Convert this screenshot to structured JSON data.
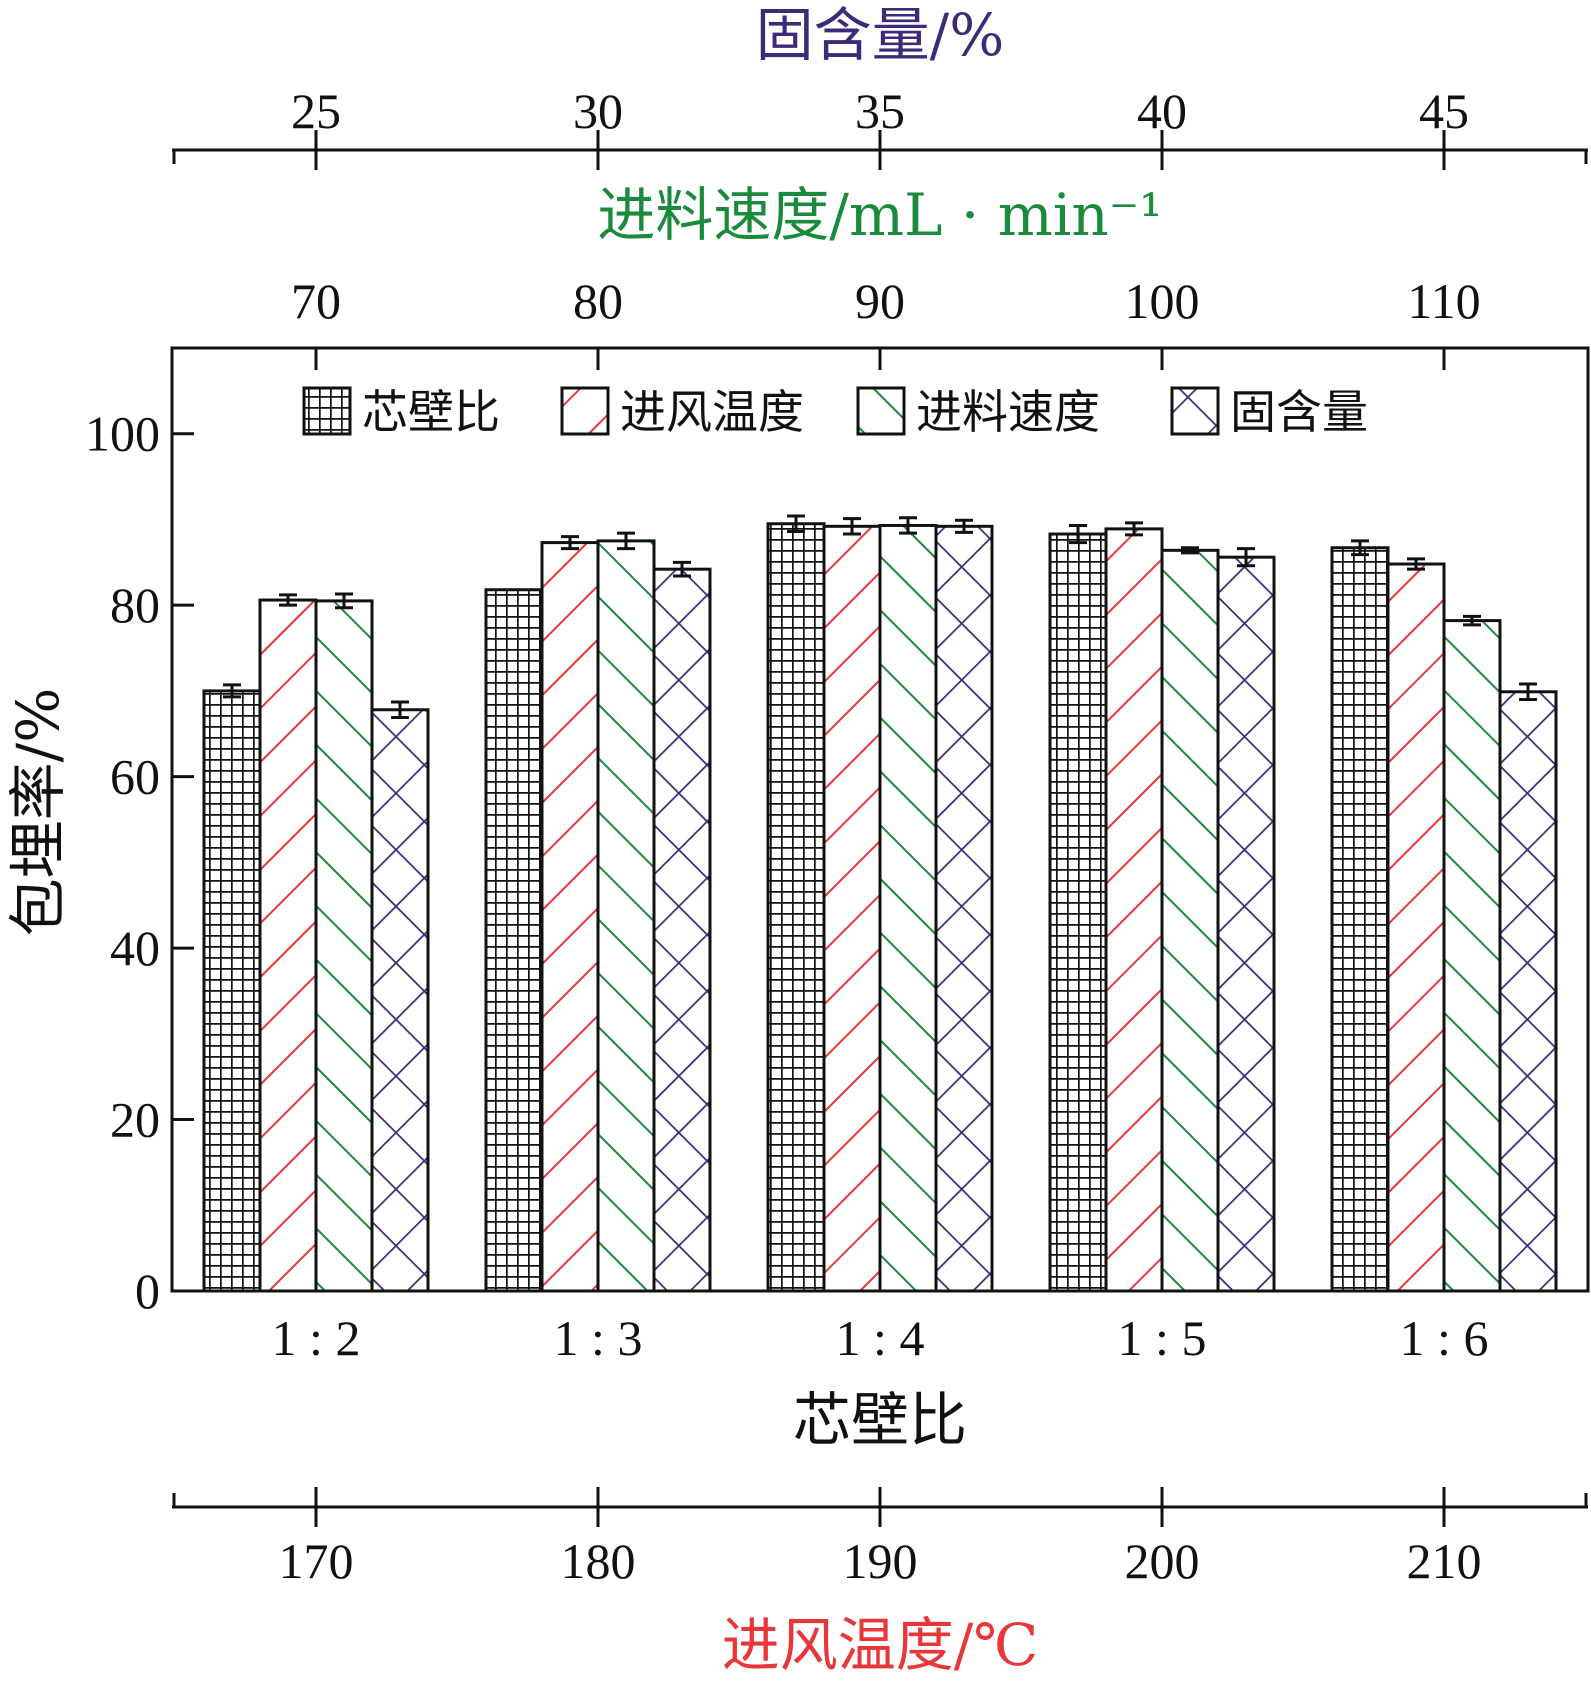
{
  "chart_data": {
    "type": "bar",
    "categories": [
      "1 : 2",
      "1 : 3",
      "1 : 4",
      "1 : 5",
      "1 : 6"
    ],
    "series": [
      {
        "name": "芯壁比",
        "values": [
          70.0,
          81.8,
          89.5,
          88.3,
          86.7
        ],
        "errors": [
          0.7,
          0.0,
          0.9,
          1.0,
          0.8
        ],
        "color": "#111111",
        "pattern": "grid"
      },
      {
        "name": "进风温度",
        "values": [
          80.6,
          87.3,
          89.2,
          88.9,
          84.8
        ],
        "errors": [
          0.6,
          0.7,
          0.9,
          0.7,
          0.6
        ],
        "color": "#e8373a",
        "pattern": "forward-diagonal"
      },
      {
        "name": "进料速度",
        "values": [
          80.5,
          87.5,
          89.3,
          86.4,
          78.2
        ],
        "errors": [
          0.8,
          0.9,
          0.9,
          0.3,
          0.5
        ],
        "color": "#1a8a3c",
        "pattern": "back-diagonal"
      },
      {
        "name": "固含量",
        "values": [
          67.8,
          84.2,
          89.2,
          85.6,
          69.9
        ],
        "errors": [
          0.9,
          0.8,
          0.7,
          1.0,
          0.9
        ],
        "color": "#3d2b7a",
        "pattern": "crosshatch"
      }
    ],
    "ylabel": "包埋率/%",
    "xlabel": "芯壁比",
    "ylim": [
      0,
      110
    ],
    "yticks": [
      "0",
      "20",
      "40",
      "60",
      "80",
      "100"
    ],
    "legend_position": "top",
    "grid": false,
    "secondary_axes": [
      {
        "position": "bottom",
        "title": "进风温度/℃",
        "ticks": [
          "170",
          "180",
          "190",
          "200",
          "210"
        ],
        "color": "#e8373a"
      },
      {
        "position": "top",
        "title": "进料速度/mL · min⁻¹",
        "ticks": [
          "70",
          "80",
          "90",
          "100",
          "110"
        ],
        "color": "#1a8a3c"
      },
      {
        "position": "top",
        "title": "固含量/%",
        "ticks": [
          "25",
          "30",
          "35",
          "40",
          "45"
        ],
        "color": "#3d2b7a"
      }
    ]
  }
}
